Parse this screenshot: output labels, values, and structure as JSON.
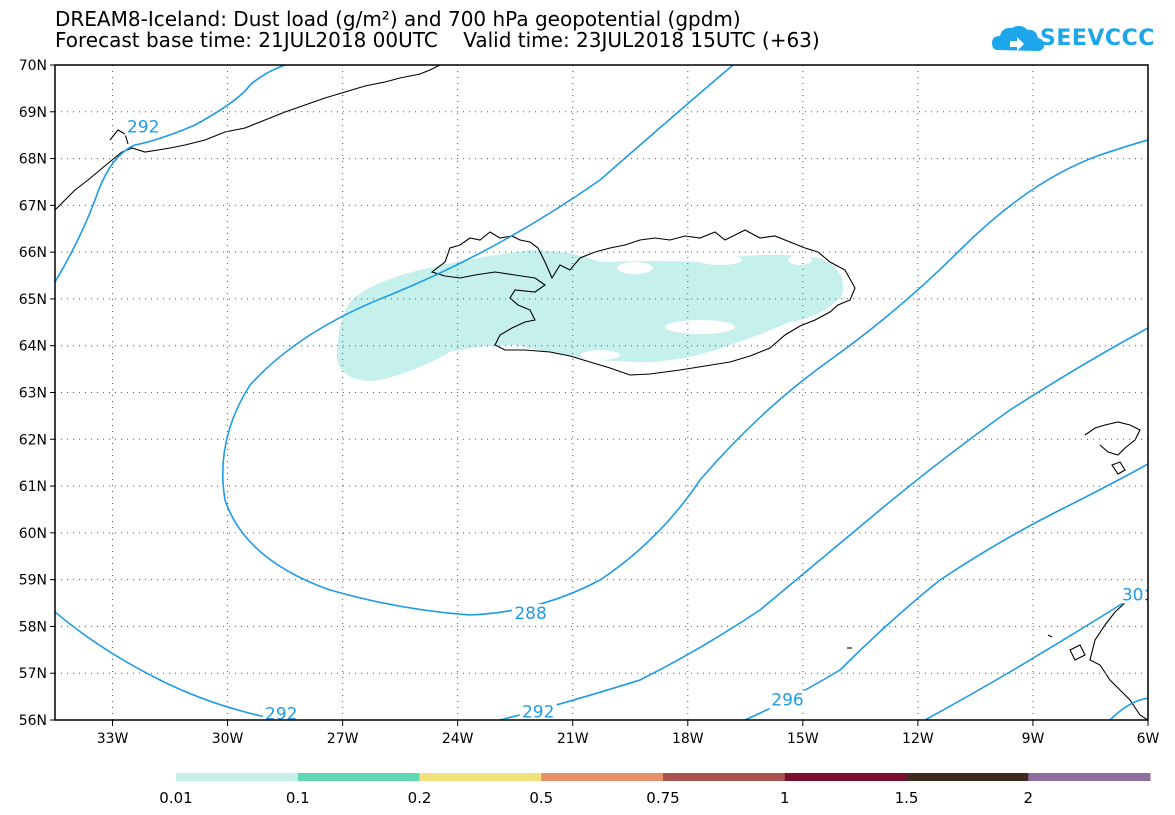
{
  "title": {
    "line1": "DREAM8-Iceland: Dust load (g/m²) and 700 hPa geopotential (gpdm)",
    "line2": "Forecast base time: 21JUL2018 00UTC    Valid time: 23JUL2018 15UTC (+63)"
  },
  "logo": {
    "text": "SEEVCCC",
    "icon": "cloud-icon"
  },
  "map": {
    "lon_range": [
      -34.5,
      -6
    ],
    "lat_range": [
      56,
      70
    ],
    "lon_ticks": [
      {
        "value": -33,
        "label": "33W"
      },
      {
        "value": -30,
        "label": "30W"
      },
      {
        "value": -27,
        "label": "27W"
      },
      {
        "value": -24,
        "label": "24W"
      },
      {
        "value": -21,
        "label": "21W"
      },
      {
        "value": -18,
        "label": "18W"
      },
      {
        "value": -15,
        "label": "15W"
      },
      {
        "value": -12,
        "label": "12W"
      },
      {
        "value": -9,
        "label": "9W"
      },
      {
        "value": -6,
        "label": "6W"
      }
    ],
    "lat_ticks": [
      {
        "value": 56,
        "label": "56N"
      },
      {
        "value": 57,
        "label": "57N"
      },
      {
        "value": 58,
        "label": "58N"
      },
      {
        "value": 59,
        "label": "59N"
      },
      {
        "value": 60,
        "label": "60N"
      },
      {
        "value": 61,
        "label": "61N"
      },
      {
        "value": 62,
        "label": "62N"
      },
      {
        "value": 63,
        "label": "63N"
      },
      {
        "value": 64,
        "label": "64N"
      },
      {
        "value": 65,
        "label": "65N"
      },
      {
        "value": 66,
        "label": "66N"
      },
      {
        "value": 67,
        "label": "67N"
      },
      {
        "value": 68,
        "label": "68N"
      },
      {
        "value": 69,
        "label": "69N"
      },
      {
        "value": 70,
        "label": "70N"
      }
    ],
    "contour_color": "#1e9be8",
    "dust_color": "#c5f0eb",
    "contour_labels": [
      {
        "text": "292",
        "lon": -32.2,
        "lat": 68.6
      },
      {
        "text": "288",
        "lon": -22.1,
        "lat": 58.2
      },
      {
        "text": "292",
        "lon": -28.6,
        "lat": 56.05
      },
      {
        "text": "292",
        "lon": -21.9,
        "lat": 56.1
      },
      {
        "text": "296",
        "lon": -15.4,
        "lat": 56.35
      },
      {
        "text": "30",
        "lon": -6.4,
        "lat": 58.6
      }
    ]
  },
  "colorbar": {
    "colors": [
      "#c5f0eb",
      "#5ed9b3",
      "#f1e37a",
      "#e8906c",
      "#a9544f",
      "#7a0f30",
      "#40291e",
      "#8e6f9e"
    ],
    "labels": [
      "0.01",
      "0.1",
      "0.2",
      "0.5",
      "0.75",
      "1",
      "1.5",
      "2"
    ]
  }
}
